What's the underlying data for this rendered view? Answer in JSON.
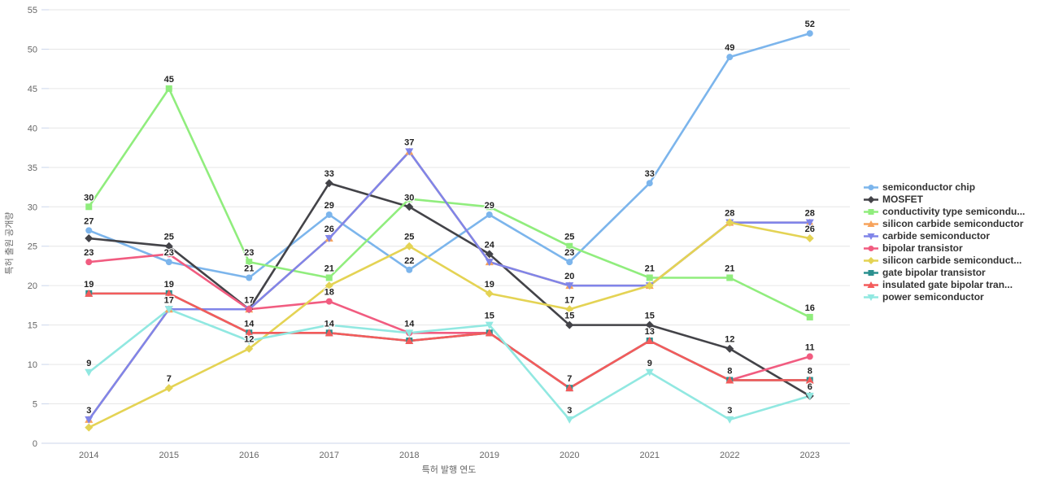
{
  "chart_data": {
    "type": "line",
    "title": "",
    "xlabel": "특허 발행 연도",
    "ylabel": "특허 출원 공개량",
    "categories": [
      "2014",
      "2015",
      "2016",
      "2017",
      "2018",
      "2019",
      "2020",
      "2021",
      "2022",
      "2023"
    ],
    "ylim": [
      0,
      55
    ],
    "ytick_step": 5,
    "grid": true,
    "legend_position": "right",
    "grid_color": "#e6e6e6",
    "axis_line_color": "#ccd6eb",
    "series": [
      {
        "name": "semiconductor chip",
        "color": "#7cb5ec",
        "marker": "circle",
        "values": [
          27,
          23,
          21,
          29,
          22,
          29,
          23,
          33,
          49,
          52
        ],
        "labels": [
          27,
          23,
          21,
          29,
          22,
          29,
          23,
          33,
          49,
          52
        ]
      },
      {
        "name": "MOSFET",
        "color": "#434348",
        "marker": "diamond",
        "values": [
          26,
          25,
          17,
          33,
          30,
          24,
          15,
          15,
          12,
          6
        ],
        "labels": [
          null,
          25,
          17,
          33,
          30,
          24,
          15,
          15,
          12,
          6
        ]
      },
      {
        "name": "conductivity type semicondu...",
        "color": "#90ed7d",
        "marker": "square",
        "values": [
          30,
          45,
          23,
          21,
          31,
          30,
          25,
          21,
          21,
          16
        ],
        "labels": [
          30,
          45,
          23,
          21,
          null,
          null,
          25,
          21,
          21,
          16
        ]
      },
      {
        "name": "silicon carbide semiconductor",
        "color": "#f7a35c",
        "marker": "triangle",
        "values": [
          3,
          17,
          17,
          26,
          37,
          23,
          20,
          20,
          28,
          28
        ],
        "labels": [
          null,
          null,
          null,
          null,
          null,
          null,
          null,
          null,
          null,
          null
        ]
      },
      {
        "name": "carbide semiconductor",
        "color": "#8085e9",
        "marker": "triangle-down",
        "values": [
          3,
          17,
          17,
          26,
          37,
          23,
          20,
          20,
          28,
          28
        ],
        "labels": [
          3,
          17,
          null,
          26,
          37,
          null,
          20,
          null,
          null,
          28
        ]
      },
      {
        "name": "bipolar transistor",
        "color": "#f15c80",
        "marker": "circle",
        "values": [
          23,
          24,
          17,
          18,
          14,
          14,
          7,
          13,
          8,
          11
        ],
        "labels": [
          23,
          null,
          null,
          18,
          null,
          null,
          7,
          13,
          8,
          11
        ]
      },
      {
        "name": "silicon carbide semiconduct...",
        "color": "#e4d354",
        "marker": "diamond",
        "values": [
          2,
          7,
          12,
          20,
          25,
          19,
          17,
          20,
          28,
          26
        ],
        "labels": [
          null,
          7,
          12,
          null,
          25,
          19,
          17,
          null,
          28,
          26
        ]
      },
      {
        "name": "gate bipolar transistor",
        "color": "#2b908f",
        "marker": "square",
        "values": [
          19,
          19,
          14,
          14,
          13,
          14,
          7,
          13,
          8,
          8
        ],
        "labels": [
          19,
          19,
          14,
          14,
          null,
          null,
          null,
          null,
          null,
          8
        ]
      },
      {
        "name": "insulated gate bipolar tran...",
        "color": "#f45b5b",
        "marker": "triangle",
        "values": [
          19,
          19,
          14,
          14,
          13,
          14,
          7,
          13,
          8,
          8
        ],
        "labels": [
          null,
          null,
          null,
          null,
          null,
          null,
          null,
          null,
          null,
          null
        ]
      },
      {
        "name": "power semiconductor",
        "color": "#91e8e1",
        "marker": "triangle-down",
        "values": [
          9,
          17,
          13,
          15,
          14,
          15,
          3,
          9,
          3,
          6
        ],
        "labels": [
          9,
          null,
          null,
          null,
          14,
          15,
          3,
          9,
          3,
          null
        ]
      }
    ]
  }
}
